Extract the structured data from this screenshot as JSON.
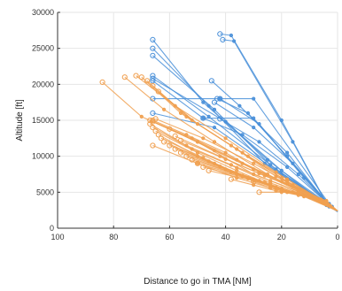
{
  "chart_data": {
    "type": "line",
    "title": "",
    "xlabel": "Distance to go in TMA [NM]",
    "ylabel": "Altitude [ft]",
    "xlim": [
      100,
      0
    ],
    "ylim": [
      0,
      30000
    ],
    "x_reversed": true,
    "xticks": [
      100,
      80,
      60,
      40,
      20,
      0
    ],
    "yticks": [
      0,
      5000,
      10000,
      15000,
      20000,
      25000,
      30000
    ],
    "grid": true,
    "colors": {
      "blue": "#4a90d9",
      "orange": "#f0a050",
      "axis": "#333333",
      "grid": "#e6e6e6"
    },
    "series": [
      {
        "group": "blue",
        "points": [
          [
            66,
            26200
          ],
          [
            48,
            17500
          ],
          [
            25,
            9500
          ],
          [
            5,
            3500
          ],
          [
            0,
            2400
          ]
        ]
      },
      {
        "group": "blue",
        "points": [
          [
            66,
            25000
          ],
          [
            46,
            17000
          ],
          [
            26,
            9000
          ],
          [
            4,
            3200
          ],
          [
            0,
            2400
          ]
        ]
      },
      {
        "group": "blue",
        "points": [
          [
            66,
            24000
          ],
          [
            44,
            16500
          ],
          [
            24,
            8800
          ],
          [
            3,
            3000
          ],
          [
            0,
            2300
          ]
        ]
      },
      {
        "group": "blue",
        "points": [
          [
            66,
            21200
          ],
          [
            46,
            15500
          ],
          [
            22,
            8200
          ],
          [
            3,
            3200
          ],
          [
            0,
            2400
          ]
        ]
      },
      {
        "group": "blue",
        "points": [
          [
            66,
            20800
          ],
          [
            40,
            14800
          ],
          [
            20,
            8000
          ],
          [
            2,
            3000
          ],
          [
            0,
            2300
          ]
        ]
      },
      {
        "group": "blue",
        "points": [
          [
            66,
            18000
          ],
          [
            42,
            18000
          ],
          [
            30,
            18000
          ],
          [
            3,
            3400
          ],
          [
            0,
            2400
          ]
        ]
      },
      {
        "group": "blue",
        "points": [
          [
            66,
            16000
          ],
          [
            44,
            14000
          ],
          [
            20,
            7500
          ],
          [
            3,
            3200
          ],
          [
            0,
            2300
          ]
        ]
      },
      {
        "group": "blue",
        "points": [
          [
            66,
            20500
          ],
          [
            48,
            15300
          ],
          [
            30,
            15300
          ],
          [
            4,
            3500
          ],
          [
            0,
            2400
          ]
        ]
      },
      {
        "group": "blue",
        "points": [
          [
            42,
            27000
          ],
          [
            38,
            26800
          ],
          [
            20,
            15000
          ],
          [
            4,
            3500
          ],
          [
            0,
            2400
          ]
        ]
      },
      {
        "group": "blue",
        "points": [
          [
            41,
            26200
          ],
          [
            37,
            26000
          ],
          [
            16,
            12000
          ],
          [
            4,
            3400
          ],
          [
            0,
            2300
          ]
        ]
      },
      {
        "group": "blue",
        "points": [
          [
            43,
            18000
          ],
          [
            32,
            16000
          ],
          [
            18,
            10000
          ],
          [
            3,
            3300
          ],
          [
            0,
            2400
          ]
        ]
      },
      {
        "group": "blue",
        "points": [
          [
            45,
            20500
          ],
          [
            35,
            17000
          ],
          [
            18,
            10500
          ],
          [
            4,
            3600
          ],
          [
            0,
            2400
          ]
        ]
      },
      {
        "group": "blue",
        "points": [
          [
            44,
            17500
          ],
          [
            30,
            14000
          ],
          [
            16,
            9000
          ],
          [
            3,
            3300
          ],
          [
            0,
            2300
          ]
        ]
      },
      {
        "group": "blue",
        "points": [
          [
            42,
            18000
          ],
          [
            28,
            14500
          ],
          [
            12,
            7000
          ],
          [
            2,
            3000
          ],
          [
            0,
            2300
          ]
        ]
      },
      {
        "group": "blue",
        "points": [
          [
            42,
            15200
          ],
          [
            28,
            12000
          ],
          [
            14,
            7500
          ],
          [
            3,
            3200
          ],
          [
            0,
            2300
          ]
        ]
      },
      {
        "group": "blue",
        "points": [
          [
            48,
            15300
          ],
          [
            34,
            13000
          ],
          [
            18,
            8500
          ],
          [
            4,
            3600
          ],
          [
            0,
            2400
          ]
        ]
      },
      {
        "group": "orange",
        "points": [
          [
            84,
            20300
          ],
          [
            70,
            15500
          ],
          [
            50,
            12000
          ],
          [
            30,
            7500
          ],
          [
            10,
            4500
          ],
          [
            0,
            2400
          ]
        ]
      },
      {
        "group": "orange",
        "points": [
          [
            76,
            21000
          ],
          [
            62,
            16500
          ],
          [
            44,
            12000
          ],
          [
            25,
            7500
          ],
          [
            10,
            4500
          ],
          [
            0,
            2400
          ]
        ]
      },
      {
        "group": "orange",
        "points": [
          [
            72,
            21200
          ],
          [
            58,
            17000
          ],
          [
            40,
            12500
          ],
          [
            22,
            7800
          ],
          [
            8,
            4300
          ],
          [
            0,
            2400
          ]
        ]
      },
      {
        "group": "orange",
        "points": [
          [
            70,
            21000
          ],
          [
            56,
            16000
          ],
          [
            38,
            11500
          ],
          [
            22,
            7200
          ],
          [
            8,
            4200
          ],
          [
            0,
            2400
          ]
        ]
      },
      {
        "group": "orange",
        "points": [
          [
            68,
            20500
          ],
          [
            54,
            15500
          ],
          [
            36,
            11000
          ],
          [
            20,
            7000
          ],
          [
            8,
            4200
          ],
          [
            0,
            2400
          ]
        ]
      },
      {
        "group": "orange",
        "points": [
          [
            66,
            19800
          ],
          [
            52,
            15000
          ],
          [
            34,
            10500
          ],
          [
            18,
            6800
          ],
          [
            6,
            4000
          ],
          [
            0,
            2400
          ]
        ]
      },
      {
        "group": "orange",
        "points": [
          [
            64,
            19000
          ],
          [
            50,
            14500
          ],
          [
            32,
            10000
          ],
          [
            18,
            6500
          ],
          [
            6,
            4000
          ],
          [
            0,
            2400
          ]
        ]
      },
      {
        "group": "orange",
        "points": [
          [
            67,
            15000
          ],
          [
            52,
            12500
          ],
          [
            36,
            9500
          ],
          [
            20,
            6500
          ],
          [
            8,
            4200
          ],
          [
            0,
            2400
          ]
        ]
      },
      {
        "group": "orange",
        "points": [
          [
            66,
            14800
          ],
          [
            50,
            12000
          ],
          [
            34,
            9000
          ],
          [
            18,
            6200
          ],
          [
            6,
            4000
          ],
          [
            0,
            2400
          ]
        ]
      },
      {
        "group": "orange",
        "points": [
          [
            65,
            15200
          ],
          [
            48,
            12500
          ],
          [
            30,
            9000
          ],
          [
            16,
            6000
          ],
          [
            6,
            4000
          ],
          [
            0,
            2400
          ]
        ]
      },
      {
        "group": "orange",
        "points": [
          [
            67,
            14500
          ],
          [
            54,
            11500
          ],
          [
            38,
            8800
          ],
          [
            24,
            6600
          ],
          [
            10,
            4500
          ],
          [
            0,
            2400
          ]
        ]
      },
      {
        "group": "orange",
        "points": [
          [
            66,
            14000
          ],
          [
            52,
            11000
          ],
          [
            36,
            8400
          ],
          [
            24,
            6300
          ],
          [
            10,
            4400
          ],
          [
            0,
            2400
          ]
        ]
      },
      {
        "group": "orange",
        "points": [
          [
            65,
            13500
          ],
          [
            50,
            10500
          ],
          [
            36,
            8000
          ],
          [
            24,
            6000
          ],
          [
            12,
            4600
          ],
          [
            0,
            2400
          ]
        ]
      },
      {
        "group": "orange",
        "points": [
          [
            64,
            13000
          ],
          [
            50,
            10000
          ],
          [
            36,
            7500
          ],
          [
            24,
            5800
          ],
          [
            12,
            4500
          ],
          [
            0,
            2400
          ]
        ]
      },
      {
        "group": "orange",
        "points": [
          [
            63,
            12500
          ],
          [
            48,
            9800
          ],
          [
            34,
            7300
          ],
          [
            22,
            5600
          ],
          [
            10,
            4300
          ],
          [
            0,
            2400
          ]
        ]
      },
      {
        "group": "orange",
        "points": [
          [
            62,
            12000
          ],
          [
            46,
            9300
          ],
          [
            32,
            7000
          ],
          [
            20,
            5400
          ],
          [
            10,
            4300
          ],
          [
            0,
            2400
          ]
        ]
      },
      {
        "group": "orange",
        "points": [
          [
            60,
            11500
          ],
          [
            44,
            9000
          ],
          [
            30,
            6800
          ],
          [
            20,
            5200
          ],
          [
            8,
            4100
          ],
          [
            0,
            2400
          ]
        ]
      },
      {
        "group": "orange",
        "points": [
          [
            58,
            11000
          ],
          [
            42,
            8600
          ],
          [
            28,
            6600
          ],
          [
            18,
            5100
          ],
          [
            8,
            4100
          ],
          [
            0,
            2400
          ]
        ]
      },
      {
        "group": "orange",
        "points": [
          [
            56,
            10500
          ],
          [
            40,
            8200
          ],
          [
            26,
            6400
          ],
          [
            16,
            5000
          ],
          [
            6,
            3900
          ],
          [
            0,
            2400
          ]
        ]
      },
      {
        "group": "orange",
        "points": [
          [
            54,
            10000
          ],
          [
            38,
            7800
          ],
          [
            24,
            6000
          ],
          [
            16,
            5000
          ],
          [
            6,
            3900
          ],
          [
            0,
            2400
          ]
        ]
      },
      {
        "group": "orange",
        "points": [
          [
            52,
            9500
          ],
          [
            36,
            7500
          ],
          [
            24,
            5900
          ],
          [
            14,
            4800
          ],
          [
            6,
            3900
          ],
          [
            0,
            2400
          ]
        ]
      },
      {
        "group": "orange",
        "points": [
          [
            50,
            9000
          ],
          [
            34,
            7200
          ],
          [
            22,
            5700
          ],
          [
            14,
            4800
          ],
          [
            6,
            3900
          ],
          [
            0,
            2400
          ]
        ]
      },
      {
        "group": "orange",
        "points": [
          [
            48,
            8500
          ],
          [
            32,
            6900
          ],
          [
            22,
            5700
          ],
          [
            12,
            4600
          ],
          [
            4,
            3700
          ],
          [
            0,
            2400
          ]
        ]
      },
      {
        "group": "orange",
        "points": [
          [
            46,
            8000
          ],
          [
            30,
            6600
          ],
          [
            20,
            5500
          ],
          [
            12,
            4600
          ],
          [
            4,
            3700
          ],
          [
            0,
            2400
          ]
        ]
      },
      {
        "group": "orange",
        "points": [
          [
            60,
            13800
          ],
          [
            44,
            10800
          ],
          [
            30,
            8200
          ],
          [
            16,
            5800
          ],
          [
            6,
            4000
          ],
          [
            0,
            2400
          ]
        ]
      },
      {
        "group": "orange",
        "points": [
          [
            58,
            12800
          ],
          [
            42,
            10000
          ],
          [
            28,
            7600
          ],
          [
            14,
            5400
          ],
          [
            4,
            3800
          ],
          [
            0,
            2400
          ]
        ]
      },
      {
        "group": "orange",
        "points": [
          [
            56,
            12200
          ],
          [
            40,
            9600
          ],
          [
            26,
            7300
          ],
          [
            14,
            5400
          ],
          [
            4,
            3800
          ],
          [
            0,
            2400
          ]
        ]
      },
      {
        "group": "orange",
        "points": [
          [
            66,
            11500
          ],
          [
            50,
            9000
          ],
          [
            36,
            7000
          ],
          [
            24,
            5600
          ],
          [
            12,
            4400
          ],
          [
            0,
            2400
          ]
        ]
      },
      {
        "group": "orange",
        "points": [
          [
            38,
            6800
          ],
          [
            30,
            6000
          ],
          [
            22,
            5200
          ],
          [
            14,
            4600
          ],
          [
            6,
            3900
          ],
          [
            0,
            2400
          ]
        ]
      },
      {
        "group": "orange",
        "points": [
          [
            30,
            6500
          ],
          [
            24,
            5600
          ],
          [
            18,
            5000
          ],
          [
            12,
            4500
          ],
          [
            6,
            3900
          ],
          [
            0,
            2400
          ]
        ]
      },
      {
        "group": "orange",
        "points": [
          [
            28,
            5000
          ],
          [
            20,
            5000
          ],
          [
            14,
            5000
          ],
          [
            8,
            4300
          ],
          [
            0,
            2400
          ]
        ]
      },
      {
        "group": "orange",
        "points": [
          [
            66,
            15000
          ],
          [
            54,
            13000
          ],
          [
            40,
            10500
          ],
          [
            28,
            7800
          ],
          [
            14,
            5200
          ],
          [
            0,
            2400
          ]
        ]
      }
    ]
  }
}
